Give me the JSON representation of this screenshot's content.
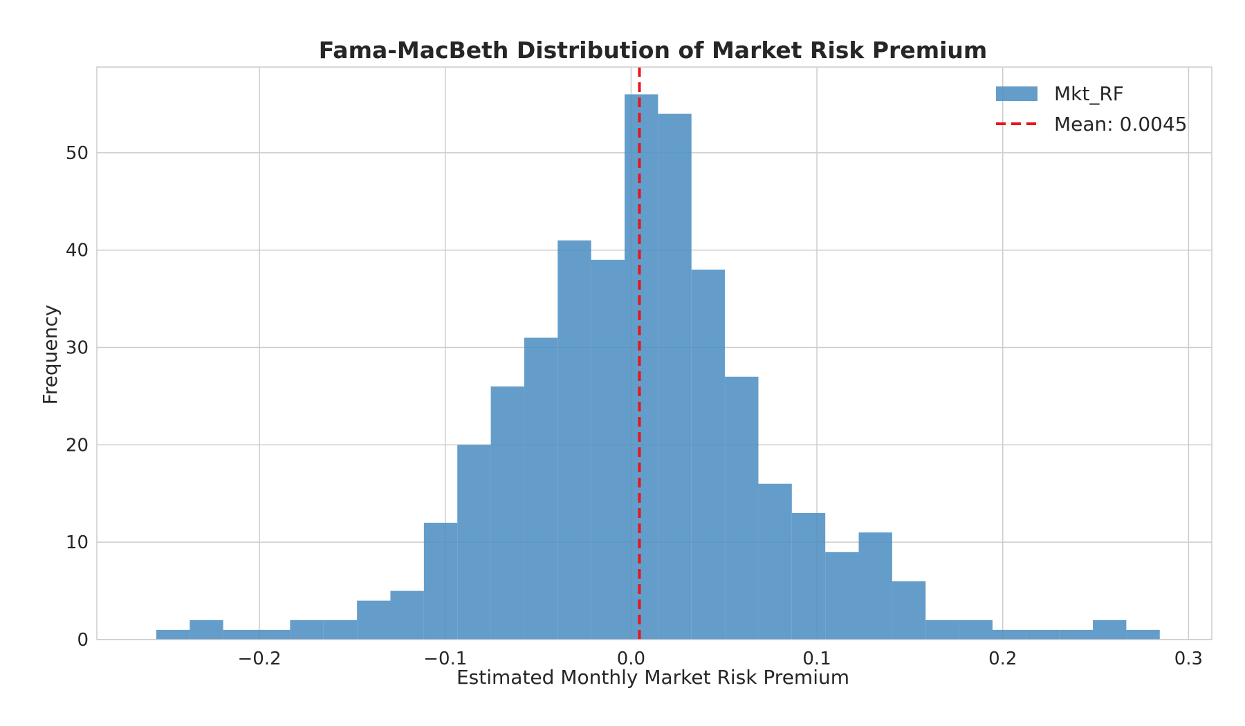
{
  "chart_data": {
    "type": "bar",
    "title": "Fama-MacBeth Distribution of Market Risk Premium",
    "xlabel": "Estimated Monthly Market Risk Premium",
    "ylabel": "Frequency",
    "bin_edges": [
      -0.2555,
      -0.2375,
      -0.2195,
      -0.2015,
      -0.1835,
      -0.1655,
      -0.1475,
      -0.1295,
      -0.1115,
      -0.0935,
      -0.0755,
      -0.0575,
      -0.0395,
      -0.0215,
      -0.0035,
      0.0145,
      0.0325,
      0.0505,
      0.0685,
      0.0865,
      0.1045,
      0.1225,
      0.1405,
      0.1585,
      0.1765,
      0.1945,
      0.2125,
      0.2305,
      0.2485,
      0.2665,
      0.2845
    ],
    "counts": [
      1,
      2,
      1,
      1,
      2,
      2,
      4,
      5,
      12,
      20,
      26,
      31,
      41,
      39,
      56,
      54,
      38,
      27,
      16,
      13,
      9,
      11,
      6,
      2,
      2,
      1,
      1,
      1,
      2,
      1
    ],
    "xlim": [
      -0.2875,
      0.3125
    ],
    "ylim": [
      0,
      58.8
    ],
    "xticks": [
      -0.2,
      -0.1,
      0.0,
      0.1,
      0.2,
      0.3
    ],
    "xtick_labels": [
      "−0.2",
      "−0.1",
      "0.0",
      "0.1",
      "0.2",
      "0.3"
    ],
    "yticks": [
      0,
      10,
      20,
      30,
      40,
      50
    ],
    "ytick_labels": [
      "0",
      "10",
      "20",
      "30",
      "40",
      "50"
    ],
    "mean_value": 0.0045,
    "grid": true,
    "legend_position": "top-right",
    "legend": [
      {
        "label": "Mkt_RF",
        "kind": "patch",
        "color": "#4f8fc3"
      },
      {
        "label": "Mean: 0.0045",
        "kind": "dashed-line",
        "color": "#e8141c"
      }
    ],
    "colors": {
      "bars": "#4f8fc3",
      "mean_line": "#e8141c",
      "grid": "#cccccc",
      "frame": "#cccccc",
      "text": "#262626"
    }
  }
}
